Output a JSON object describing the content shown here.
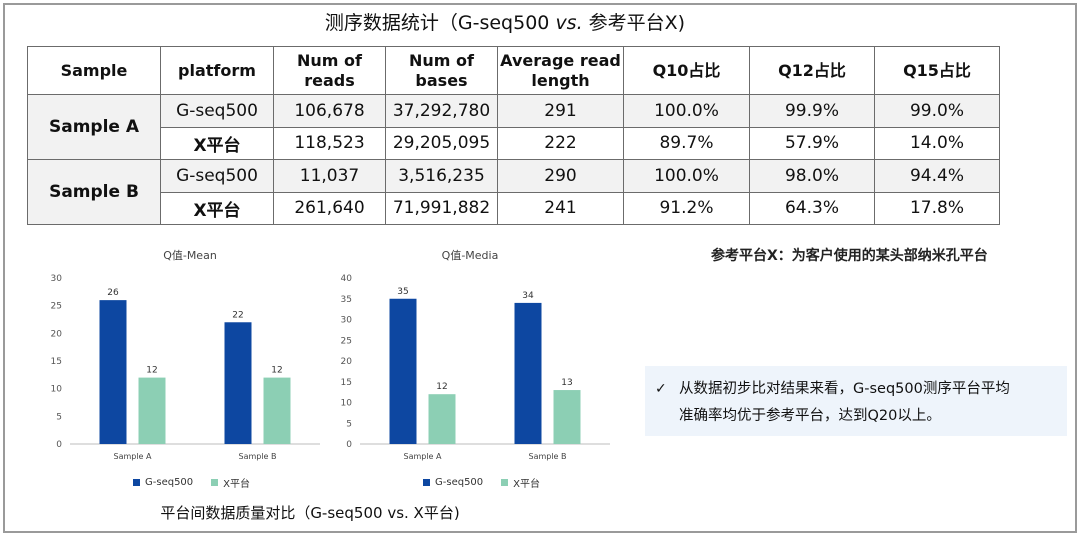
{
  "title": {
    "prefix": "测序数据统计（G-seq500 ",
    "vs": "vs.",
    "suffix": " 参考平台X)"
  },
  "table": {
    "headers": [
      "Sample",
      "platform",
      "Num of reads",
      "Num of bases",
      "Average read length",
      "Q10占比",
      "Q12占比",
      "Q15占比"
    ],
    "groups": [
      {
        "sample": "Sample A",
        "rows": [
          {
            "platform": "G-seq500",
            "reads": "106,678",
            "bases": "37,292,780",
            "avg_len": "291",
            "q10": "100.0%",
            "q12": "99.9%",
            "q15": "99.0%"
          },
          {
            "platform": "X平台",
            "reads": "118,523",
            "bases": "29,205,095",
            "avg_len": "222",
            "q10": "89.7%",
            "q12": "57.9%",
            "q15": "14.0%"
          }
        ]
      },
      {
        "sample": "Sample B",
        "rows": [
          {
            "platform": "G-seq500",
            "reads": "11,037",
            "bases": "3,516,235",
            "avg_len": "290",
            "q10": "100.0%",
            "q12": "98.0%",
            "q15": "94.4%"
          },
          {
            "platform": "X平台",
            "reads": "261,640",
            "bases": "71,991,882",
            "avg_len": "241",
            "q10": "91.2%",
            "q12": "64.3%",
            "q15": "17.8%"
          }
        ]
      }
    ]
  },
  "chart_data": [
    {
      "type": "bar",
      "title": "Q值-Mean",
      "categories": [
        "Sample A",
        "Sample B"
      ],
      "series": [
        {
          "name": "G-seq500",
          "values": [
            26,
            22
          ],
          "color": "#0d47a1"
        },
        {
          "name": "X平台",
          "values": [
            12,
            12
          ],
          "color": "#8ccfb4"
        }
      ],
      "ylim": [
        0,
        30
      ],
      "yticks": [
        0,
        5,
        10,
        15,
        20,
        25,
        30
      ],
      "legend": "bottom"
    },
    {
      "type": "bar",
      "title": "Q值-Media",
      "categories": [
        "Sample A",
        "Sample B"
      ],
      "series": [
        {
          "name": "G-seq500",
          "values": [
            35,
            34
          ],
          "color": "#0d47a1"
        },
        {
          "name": "X平台",
          "values": [
            12,
            13
          ],
          "color": "#8ccfb4"
        }
      ],
      "ylim": [
        0,
        40
      ],
      "yticks": [
        0,
        5,
        10,
        15,
        20,
        25,
        30,
        35,
        40
      ],
      "legend": "bottom"
    }
  ],
  "caption": "平台间数据质量对比（G-seq500 vs. X平台)",
  "note": "参考平台X：为客户使用的某头部纳米孔平台",
  "conclusion": {
    "check": "✓",
    "line1": "从数据初步比对结果来看，G-seq500测序平台平均",
    "line2": "准确率均优于参考平台，达到Q20以上。"
  }
}
